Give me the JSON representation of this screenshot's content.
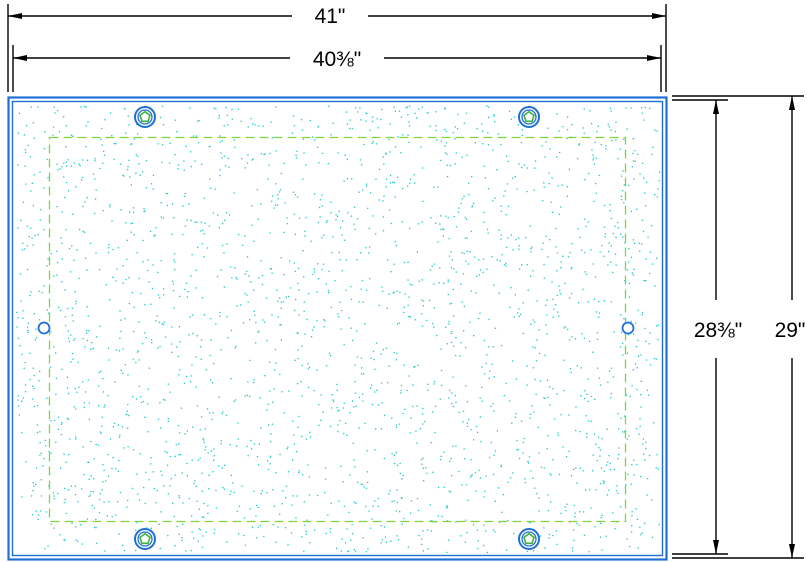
{
  "dimensions": {
    "outer_width": "41\"",
    "inner_width": "40⅜\"",
    "inner_height": "28⅜\"",
    "outer_height": "29\""
  },
  "colors": {
    "frame": "#1f6fd6",
    "fastener": "#1f6fd6",
    "pentagon": "#3fb23f",
    "dashed_border": "#7fd63f",
    "speckle": "#18c8c8",
    "dimension_line": "#000000",
    "background": "#ffffff"
  },
  "icons": {
    "corner_fastener": "pentagon-bolt-icon",
    "side_hole": "circle-hole-icon"
  }
}
